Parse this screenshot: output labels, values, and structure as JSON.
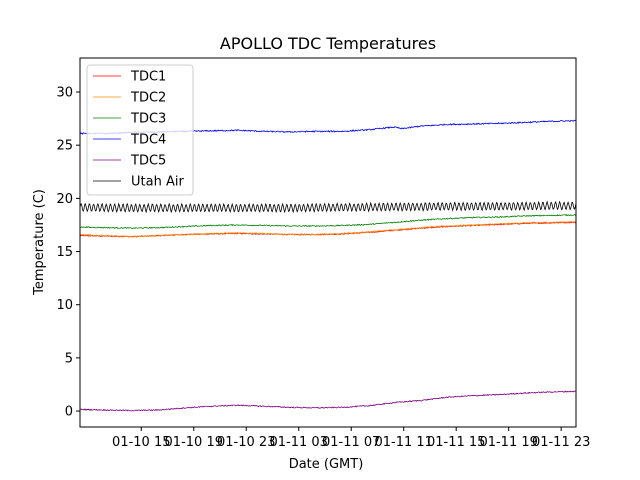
{
  "chart_data": {
    "type": "line",
    "title": "APOLLO TDC Temperatures",
    "xlabel": "Date (GMT)",
    "ylabel": "Temperature (C)",
    "xlim": [
      0,
      37.8
    ],
    "ylim": [
      -1.5,
      33.2
    ],
    "x_unit": "hours since 01-10 10:20 GMT",
    "xticks": [
      {
        "value": 4.67,
        "label": "01-10 15"
      },
      {
        "value": 8.67,
        "label": "01-10 19"
      },
      {
        "value": 12.67,
        "label": "01-10 23"
      },
      {
        "value": 16.67,
        "label": "01-11 03"
      },
      {
        "value": 20.67,
        "label": "01-11 07"
      },
      {
        "value": 24.67,
        "label": "01-11 11"
      },
      {
        "value": 28.67,
        "label": "01-11 15"
      },
      {
        "value": 32.67,
        "label": "01-11 19"
      },
      {
        "value": 36.67,
        "label": "01-11 23"
      }
    ],
    "yticks": [
      0,
      5,
      10,
      15,
      20,
      25,
      30
    ],
    "grid": false,
    "legend_position": "top-left",
    "series": [
      {
        "name": "TDC1",
        "color": "#ff0000",
        "noise": 0.05,
        "x": [
          0,
          2,
          4,
          6,
          8,
          10,
          12,
          14,
          16,
          18,
          20,
          22,
          24,
          26,
          28,
          30,
          32,
          34,
          36,
          37.8
        ],
        "values": [
          16.5,
          16.45,
          16.4,
          16.5,
          16.6,
          16.65,
          16.7,
          16.65,
          16.6,
          16.6,
          16.65,
          16.8,
          17.0,
          17.2,
          17.35,
          17.45,
          17.55,
          17.65,
          17.7,
          17.75
        ]
      },
      {
        "name": "TDC2",
        "color": "#ff8c00",
        "noise": 0.05,
        "x": [
          0,
          2,
          4,
          6,
          8,
          10,
          12,
          14,
          16,
          18,
          20,
          22,
          24,
          26,
          28,
          30,
          32,
          34,
          36,
          37.8
        ],
        "values": [
          16.6,
          16.5,
          16.4,
          16.5,
          16.6,
          16.7,
          16.75,
          16.7,
          16.6,
          16.6,
          16.7,
          16.85,
          17.05,
          17.25,
          17.4,
          17.5,
          17.6,
          17.7,
          17.75,
          17.8
        ]
      },
      {
        "name": "TDC3",
        "color": "#008000",
        "noise": 0.05,
        "x": [
          0,
          2,
          4,
          6,
          8,
          10,
          12,
          14,
          16,
          18,
          20,
          22,
          24,
          26,
          28,
          30,
          32,
          34,
          36,
          37.8
        ],
        "values": [
          17.3,
          17.25,
          17.2,
          17.25,
          17.35,
          17.45,
          17.5,
          17.45,
          17.4,
          17.4,
          17.45,
          17.55,
          17.75,
          17.95,
          18.1,
          18.2,
          18.25,
          18.35,
          18.4,
          18.45
        ]
      },
      {
        "name": "TDC4",
        "color": "#0000ff",
        "noise": 0.06,
        "x": [
          0,
          2,
          4,
          6,
          8,
          10,
          12,
          14,
          16,
          18,
          20,
          22,
          23.5,
          24,
          24.5,
          26,
          28,
          30,
          32,
          34,
          36,
          37.8
        ],
        "values": [
          26.1,
          26.1,
          26.2,
          26.25,
          26.3,
          26.35,
          26.4,
          26.3,
          26.25,
          26.3,
          26.3,
          26.45,
          26.65,
          26.7,
          26.55,
          26.8,
          26.95,
          27.0,
          27.05,
          27.15,
          27.25,
          27.3
        ]
      },
      {
        "name": "TDC5",
        "color": "#800080",
        "noise": 0.05,
        "x": [
          0,
          2,
          4,
          6,
          8,
          10,
          12,
          14,
          16,
          18,
          20,
          22,
          24,
          26,
          28,
          30,
          32,
          34,
          36,
          37.8
        ],
        "values": [
          0.15,
          0.1,
          0.05,
          0.1,
          0.3,
          0.45,
          0.55,
          0.45,
          0.35,
          0.3,
          0.35,
          0.5,
          0.8,
          1.0,
          1.3,
          1.45,
          1.55,
          1.7,
          1.8,
          1.85
        ]
      },
      {
        "name": "Utah Air",
        "color": "#000000",
        "noise": 0.04,
        "oscillation": {
          "amplitude": 0.35,
          "period": 0.32
        },
        "x": [
          0,
          4,
          8,
          12,
          16,
          20,
          24,
          28,
          32,
          36,
          37.8
        ],
        "values": [
          19.15,
          19.1,
          19.1,
          19.1,
          19.1,
          19.15,
          19.2,
          19.25,
          19.25,
          19.3,
          19.3
        ]
      }
    ]
  }
}
